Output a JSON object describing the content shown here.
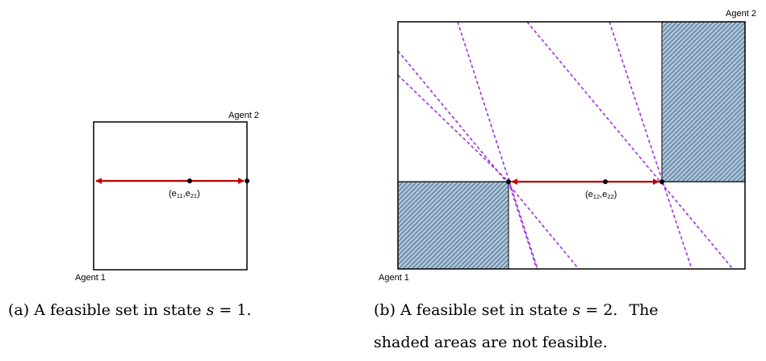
{
  "figure_a": {
    "agent_top": "Agent 2",
    "agent_bottom": "Agent 1",
    "point_label": {
      "open": "(e",
      "s1": "11",
      "mid": ",e",
      "s2": "21",
      "close": ")"
    },
    "caption": {
      "prefix": "(a)",
      "text": "A feasible set in state",
      "var": "s",
      "eq": "= 1."
    }
  },
  "figure_b": {
    "agent_top": "Agent 2",
    "agent_bottom": "Agent 1",
    "point_label": {
      "open": "(e",
      "s1": "12",
      "mid": ",e",
      "s2": "22",
      "close": ")"
    },
    "caption_line1": {
      "prefix": "(b)",
      "text": "A feasible set in state",
      "var": "s",
      "eq": "= 2.",
      "tail": "The"
    },
    "caption_line2": "shaded areas are not feasible."
  },
  "colors": {
    "arrow": "#c00000",
    "dashed": "#a030e0",
    "hatch_fill": "#a9c2d8",
    "hatch_line": "#2a4a66",
    "box": "#000000"
  }
}
